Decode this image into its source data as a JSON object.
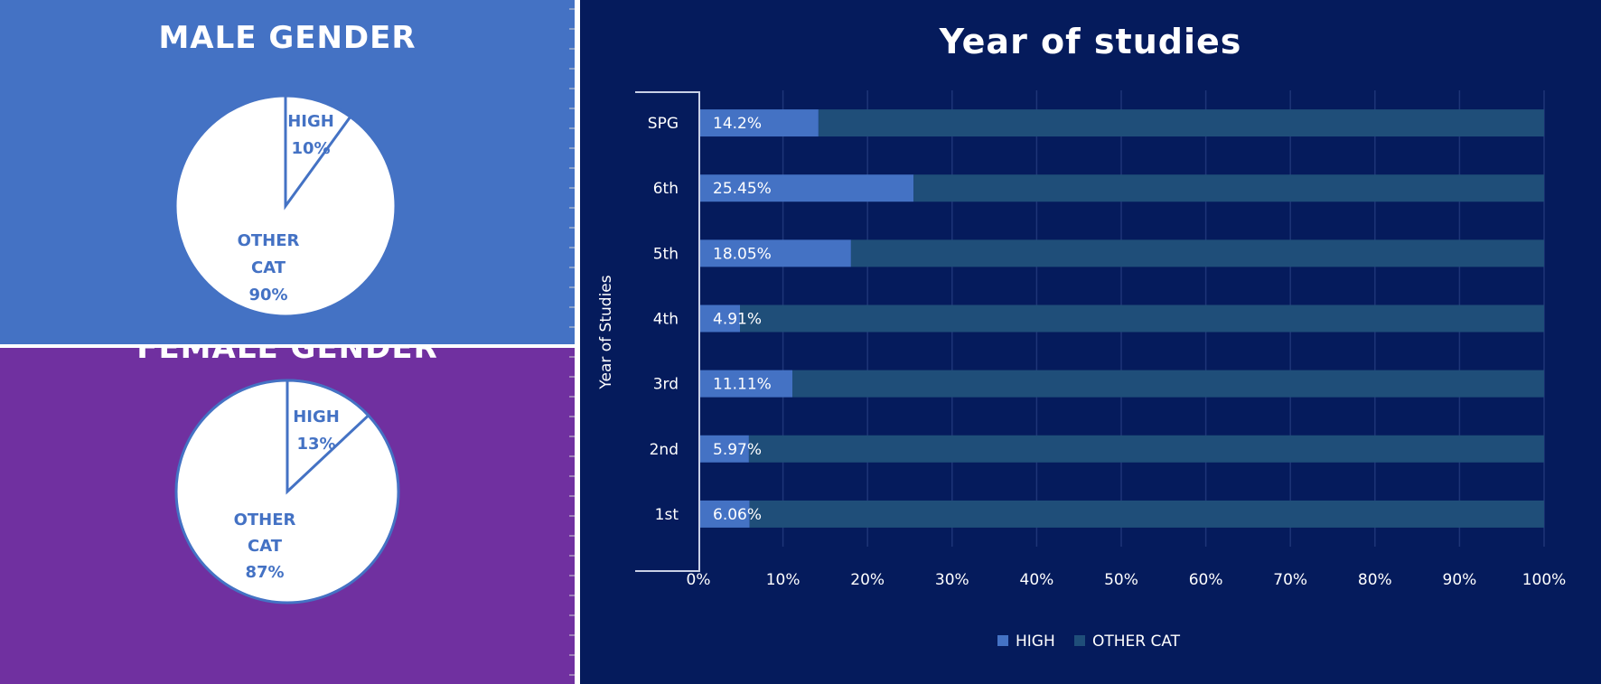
{
  "chart_data": [
    {
      "type": "pie",
      "title": "MALE GENDER",
      "slices": [
        {
          "label_lines": [
            "HIGH",
            "10%"
          ],
          "value": 10
        },
        {
          "label_lines": [
            "OTHER",
            "CAT",
            "90%"
          ],
          "value": 90
        }
      ]
    },
    {
      "type": "pie",
      "title": "FEMALE GENDER",
      "slices": [
        {
          "label_lines": [
            "HIGH",
            "13%"
          ],
          "value": 13
        },
        {
          "label_lines": [
            "OTHER",
            "CAT",
            "87%"
          ],
          "value": 87
        }
      ]
    },
    {
      "type": "bar",
      "orientation": "horizontal",
      "stacked": "100%",
      "title": "Year of studies",
      "ylabel": "Year of Studies",
      "xlabel": "",
      "categories": [
        "SPG",
        "6th",
        "5th",
        "4th",
        "3rd",
        "2nd",
        "1st"
      ],
      "series": [
        {
          "name": "HIGH",
          "values": [
            14.2,
            25.45,
            18.05,
            4.91,
            11.11,
            5.97,
            6.06
          ],
          "data_labels": [
            "14.2%",
            "25.45%",
            "18.05%",
            "4.91%",
            "11.11%",
            "5.97%",
            "6.06%"
          ]
        },
        {
          "name": "OTHER CAT",
          "values": [
            85.8,
            74.55,
            81.95,
            95.09,
            88.89,
            94.03,
            93.94
          ]
        }
      ],
      "xlim": [
        0,
        100
      ],
      "xticks": [
        "0%",
        "10%",
        "20%",
        "30%",
        "40%",
        "50%",
        "60%",
        "70%",
        "80%",
        "90%",
        "100%"
      ],
      "legend": "bottom",
      "grid": true
    }
  ],
  "colors": {
    "male_bg": "#4472c4",
    "female_bg": "#7030a0",
    "chart_bg": "#051b5c",
    "pie_fill": "#ffffff",
    "pie_line": "#4472c4",
    "pie_text": "#4472c4",
    "high_bar": "#4472c4",
    "other_bar": "#1f4e79",
    "axis_text": "#ffffff",
    "grid": "#1e3577"
  }
}
